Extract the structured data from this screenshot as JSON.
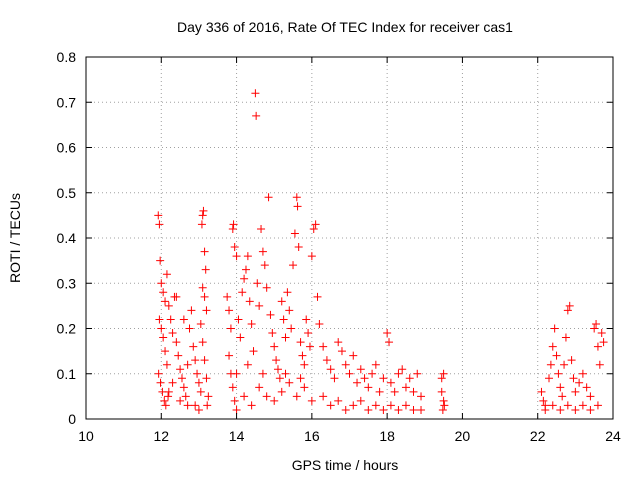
{
  "chart_data": {
    "type": "scatter",
    "title": "Day 336 of 2016, Rate Of TEC Index for receiver cas1",
    "xlabel": "GPS time / hours",
    "ylabel": "ROTI / TECUs",
    "xlim": [
      10,
      24
    ],
    "ylim": [
      0,
      0.8
    ],
    "x_ticks": [
      10,
      12,
      14,
      16,
      18,
      20,
      22,
      24
    ],
    "y_ticks": [
      0,
      0.1,
      0.2,
      0.3,
      0.4,
      0.5,
      0.6,
      0.7,
      0.8
    ],
    "x_tick_labels": [
      "10",
      "12",
      "14",
      "16",
      "18",
      "20",
      "22",
      "24"
    ],
    "y_tick_labels": [
      "0",
      "0.1",
      "0.2",
      "0.3",
      "0.4",
      "0.5",
      "0.6",
      "0.7",
      "0.8"
    ],
    "grid": true,
    "marker": "plus",
    "color": "#ff0000",
    "series": [
      {
        "points": [
          [
            11.92,
            0.45
          ],
          [
            11.95,
            0.43
          ],
          [
            11.97,
            0.35
          ],
          [
            12.0,
            0.3
          ],
          [
            12.05,
            0.28
          ],
          [
            12.1,
            0.26
          ],
          [
            12.15,
            0.32
          ],
          [
            12.2,
            0.25
          ],
          [
            11.95,
            0.22
          ],
          [
            12.0,
            0.2
          ],
          [
            12.05,
            0.18
          ],
          [
            12.1,
            0.15
          ],
          [
            12.15,
            0.12
          ],
          [
            11.93,
            0.1
          ],
          [
            11.98,
            0.08
          ],
          [
            12.03,
            0.06
          ],
          [
            12.08,
            0.04
          ],
          [
            12.12,
            0.03
          ],
          [
            12.18,
            0.05
          ],
          [
            12.25,
            0.22
          ],
          [
            12.3,
            0.19
          ],
          [
            12.35,
            0.27
          ],
          [
            12.4,
            0.17
          ],
          [
            12.45,
            0.14
          ],
          [
            12.5,
            0.11
          ],
          [
            12.55,
            0.09
          ],
          [
            12.6,
            0.07
          ],
          [
            12.65,
            0.05
          ],
          [
            12.7,
            0.03
          ],
          [
            12.75,
            0.2
          ],
          [
            12.8,
            0.24
          ],
          [
            12.85,
            0.16
          ],
          [
            12.9,
            0.13
          ],
          [
            12.95,
            0.1
          ],
          [
            13.0,
            0.08
          ],
          [
            13.05,
            0.06
          ],
          [
            13.1,
            0.45
          ],
          [
            13.12,
            0.46
          ],
          [
            13.08,
            0.43
          ],
          [
            13.15,
            0.37
          ],
          [
            13.18,
            0.33
          ],
          [
            13.1,
            0.29
          ],
          [
            13.15,
            0.27
          ],
          [
            13.2,
            0.24
          ],
          [
            13.05,
            0.21
          ],
          [
            13.1,
            0.17
          ],
          [
            13.15,
            0.13
          ],
          [
            13.2,
            0.09
          ],
          [
            13.25,
            0.05
          ],
          [
            13.22,
            0.03
          ],
          [
            12.4,
            0.27
          ],
          [
            12.6,
            0.22
          ],
          [
            12.2,
            0.06
          ],
          [
            12.5,
            0.04
          ],
          [
            12.9,
            0.03
          ],
          [
            13.0,
            0.02
          ],
          [
            12.3,
            0.08
          ],
          [
            12.7,
            0.12
          ],
          [
            13.75,
            0.27
          ],
          [
            13.8,
            0.24
          ],
          [
            13.85,
            0.2
          ],
          [
            13.9,
            0.42
          ],
          [
            13.92,
            0.43
          ],
          [
            13.95,
            0.38
          ],
          [
            14.0,
            0.36
          ],
          [
            13.8,
            0.14
          ],
          [
            13.85,
            0.1
          ],
          [
            13.9,
            0.07
          ],
          [
            13.95,
            0.04
          ],
          [
            14.0,
            0.02
          ],
          [
            14.05,
            0.22
          ],
          [
            14.1,
            0.18
          ],
          [
            14.15,
            0.28
          ],
          [
            14.2,
            0.31
          ],
          [
            14.25,
            0.33
          ],
          [
            14.3,
            0.36
          ],
          [
            14.35,
            0.26
          ],
          [
            14.4,
            0.21
          ],
          [
            14.45,
            0.15
          ],
          [
            14.5,
            0.72
          ],
          [
            14.52,
            0.67
          ],
          [
            14.55,
            0.3
          ],
          [
            14.6,
            0.25
          ],
          [
            14.65,
            0.42
          ],
          [
            14.7,
            0.37
          ],
          [
            14.75,
            0.34
          ],
          [
            14.8,
            0.29
          ],
          [
            14.85,
            0.49
          ],
          [
            14.9,
            0.23
          ],
          [
            14.95,
            0.19
          ],
          [
            15.0,
            0.16
          ],
          [
            15.05,
            0.13
          ],
          [
            15.1,
            0.11
          ],
          [
            15.15,
            0.09
          ],
          [
            15.2,
            0.26
          ],
          [
            15.25,
            0.22
          ],
          [
            15.3,
            0.18
          ],
          [
            15.35,
            0.28
          ],
          [
            15.4,
            0.24
          ],
          [
            15.45,
            0.2
          ],
          [
            15.5,
            0.34
          ],
          [
            15.55,
            0.41
          ],
          [
            15.6,
            0.49
          ],
          [
            15.62,
            0.47
          ],
          [
            15.65,
            0.38
          ],
          [
            15.7,
            0.17
          ],
          [
            15.75,
            0.14
          ],
          [
            15.8,
            0.12
          ],
          [
            15.85,
            0.22
          ],
          [
            15.9,
            0.19
          ],
          [
            15.95,
            0.16
          ],
          [
            16.0,
            0.36
          ],
          [
            16.05,
            0.42
          ],
          [
            16.1,
            0.43
          ],
          [
            16.15,
            0.27
          ],
          [
            16.2,
            0.21
          ],
          [
            14.2,
            0.05
          ],
          [
            14.4,
            0.03
          ],
          [
            14.6,
            0.07
          ],
          [
            14.8,
            0.05
          ],
          [
            15.0,
            0.04
          ],
          [
            15.2,
            0.06
          ],
          [
            15.4,
            0.08
          ],
          [
            15.6,
            0.05
          ],
          [
            15.8,
            0.07
          ],
          [
            16.0,
            0.04
          ],
          [
            14.0,
            0.1
          ],
          [
            14.3,
            0.12
          ],
          [
            14.7,
            0.1
          ],
          [
            15.3,
            0.1
          ],
          [
            15.7,
            0.09
          ],
          [
            16.3,
            0.16
          ],
          [
            16.4,
            0.13
          ],
          [
            16.5,
            0.11
          ],
          [
            16.6,
            0.09
          ],
          [
            16.7,
            0.17
          ],
          [
            16.8,
            0.15
          ],
          [
            16.9,
            0.12
          ],
          [
            17.0,
            0.1
          ],
          [
            17.1,
            0.14
          ],
          [
            17.2,
            0.08
          ],
          [
            17.3,
            0.11
          ],
          [
            17.4,
            0.09
          ],
          [
            17.5,
            0.07
          ],
          [
            17.6,
            0.1
          ],
          [
            17.7,
            0.12
          ],
          [
            17.8,
            0.06
          ],
          [
            17.9,
            0.09
          ],
          [
            18.0,
            0.19
          ],
          [
            18.05,
            0.17
          ],
          [
            18.1,
            0.08
          ],
          [
            18.2,
            0.06
          ],
          [
            18.3,
            0.1
          ],
          [
            18.4,
            0.11
          ],
          [
            18.5,
            0.07
          ],
          [
            18.6,
            0.09
          ],
          [
            18.7,
            0.06
          ],
          [
            18.8,
            0.1
          ],
          [
            18.9,
            0.05
          ],
          [
            16.3,
            0.05
          ],
          [
            16.5,
            0.03
          ],
          [
            16.7,
            0.04
          ],
          [
            16.9,
            0.02
          ],
          [
            17.1,
            0.03
          ],
          [
            17.3,
            0.04
          ],
          [
            17.5,
            0.02
          ],
          [
            17.7,
            0.03
          ],
          [
            17.9,
            0.02
          ],
          [
            18.1,
            0.03
          ],
          [
            18.3,
            0.02
          ],
          [
            18.5,
            0.03
          ],
          [
            18.7,
            0.02
          ],
          [
            18.9,
            0.02
          ],
          [
            19.45,
            0.09
          ],
          [
            19.5,
            0.1
          ],
          [
            19.45,
            0.06
          ],
          [
            19.5,
            0.04
          ],
          [
            19.48,
            0.02
          ],
          [
            19.52,
            0.03
          ],
          [
            22.1,
            0.06
          ],
          [
            22.15,
            0.04
          ],
          [
            22.2,
            0.03
          ],
          [
            22.3,
            0.09
          ],
          [
            22.35,
            0.12
          ],
          [
            22.4,
            0.16
          ],
          [
            22.45,
            0.2
          ],
          [
            22.5,
            0.14
          ],
          [
            22.55,
            0.1
          ],
          [
            22.6,
            0.07
          ],
          [
            22.65,
            0.05
          ],
          [
            22.7,
            0.12
          ],
          [
            22.75,
            0.18
          ],
          [
            22.8,
            0.24
          ],
          [
            22.85,
            0.25
          ],
          [
            22.9,
            0.13
          ],
          [
            22.95,
            0.09
          ],
          [
            23.0,
            0.06
          ],
          [
            23.1,
            0.08
          ],
          [
            23.2,
            0.1
          ],
          [
            23.3,
            0.07
          ],
          [
            23.4,
            0.05
          ],
          [
            23.5,
            0.2
          ],
          [
            23.55,
            0.21
          ],
          [
            23.6,
            0.16
          ],
          [
            23.65,
            0.12
          ],
          [
            23.7,
            0.19
          ],
          [
            23.75,
            0.17
          ],
          [
            23.6,
            0.03
          ],
          [
            23.4,
            0.02
          ],
          [
            23.2,
            0.03
          ],
          [
            23.0,
            0.02
          ],
          [
            22.8,
            0.03
          ],
          [
            22.6,
            0.02
          ],
          [
            22.4,
            0.03
          ],
          [
            22.2,
            0.02
          ]
        ]
      }
    ]
  }
}
